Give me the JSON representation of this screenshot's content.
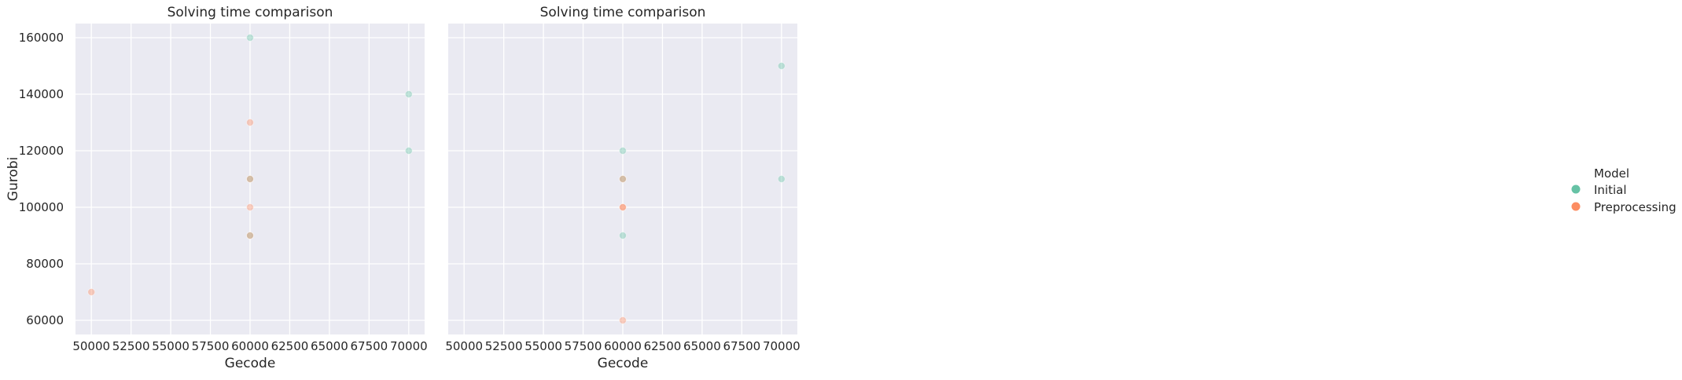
{
  "legend": {
    "title": "Model",
    "items": [
      {
        "label": "Initial",
        "color": "#66c2a5"
      },
      {
        "label": "Preprocessing",
        "color": "#fc8d62"
      }
    ]
  },
  "chart_data": [
    {
      "type": "scatter",
      "title": "Solving time comparison",
      "xlabel": "Gecode",
      "ylabel": "Gurobi",
      "xlim": [
        49000,
        71000
      ],
      "ylim": [
        55000,
        165000
      ],
      "xticks": [
        50000,
        52500,
        55000,
        57500,
        60000,
        62500,
        65000,
        67500,
        70000
      ],
      "yticks": [
        60000,
        80000,
        100000,
        120000,
        140000,
        160000
      ],
      "grid": true,
      "series": [
        {
          "name": "Initial",
          "color": "#66c2a5",
          "x": [
            60000,
            70000,
            70000,
            60000,
            60000
          ],
          "y": [
            160000,
            140000,
            120000,
            110000,
            90000
          ]
        },
        {
          "name": "Preprocessing",
          "color": "#fc8d62",
          "x": [
            60000,
            60000,
            60000,
            60000,
            50000
          ],
          "y": [
            130000,
            110000,
            100000,
            90000,
            70000
          ]
        }
      ]
    },
    {
      "type": "scatter",
      "title": "Solving time comparison",
      "xlabel": "Gecode",
      "ylabel": "",
      "xlim": [
        49000,
        71000
      ],
      "ylim": [
        55000,
        165000
      ],
      "xticks": [
        50000,
        52500,
        55000,
        57500,
        60000,
        62500,
        65000,
        67500,
        70000
      ],
      "yticks": [
        60000,
        80000,
        100000,
        120000,
        140000,
        160000
      ],
      "grid": true,
      "series": [
        {
          "name": "Initial",
          "color": "#66c2a5",
          "x": [
            70000,
            60000,
            60000,
            70000,
            60000
          ],
          "y": [
            150000,
            120000,
            110000,
            110000,
            90000
          ]
        },
        {
          "name": "Preprocessing",
          "color": "#fc8d62",
          "x": [
            60000,
            60000,
            60000,
            60000
          ],
          "y": [
            110000,
            100000,
            100000,
            60000
          ]
        }
      ]
    }
  ]
}
